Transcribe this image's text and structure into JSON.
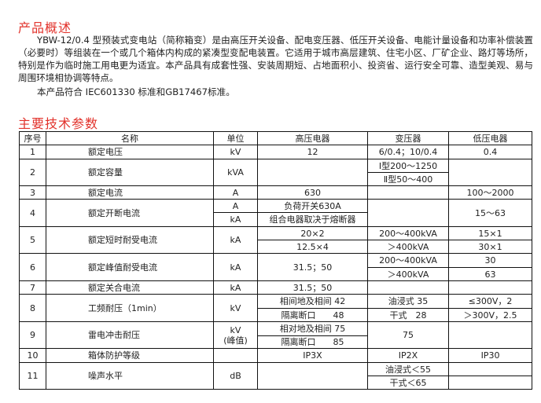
{
  "overview": {
    "title": "产品概述",
    "paragraph1": "YBW-12/0.4 型预装式变电站（简称箱变）是由高压开关设备、配电变压器、低压开关设备、电能计量设备和功率补偿装置（必要时）等组装在一个或几个箱体内构成的紧凑型变配电装置。它适用于城市高层建筑、住宅小区、厂矿企业、路灯等场所，特别是作为临时施工用电更为适宜。本产品具有成套性强、安装周期短、占地面积小、投资省、运行安全可靠、造型美观、易与周围环境相协调等特点。",
    "paragraph2": "本产品符合 IEC601330 标准和GB17467标准。"
  },
  "params": {
    "title": "主要技术参数",
    "headers": [
      "序号",
      "名称",
      "单位",
      "高压电器",
      "变压器",
      "低压电器"
    ],
    "rows": [
      {
        "no": "1",
        "name": "额定电压",
        "unit": "kV",
        "hv": "12",
        "tf": "6/0.4；10/0.4",
        "lv": "0.4"
      },
      {
        "no": "2",
        "name": "额定容量",
        "unit": "kVA",
        "hv": "",
        "tf": [
          "Ⅰ型200～1250",
          "Ⅱ型50～400"
        ],
        "lv": ""
      },
      {
        "no": "3",
        "name": "额定电流",
        "unit": "A",
        "hv": "630",
        "tf": "",
        "lv": "100～2000"
      },
      {
        "no": "4",
        "name": "额定开断电流",
        "unit": [
          "A",
          "kA"
        ],
        "hv": [
          "负荷开关630A",
          "组合电器取决于熔断器"
        ],
        "tf": "",
        "lv": "15～63"
      },
      {
        "no": "5",
        "name": "额定短时耐受电流",
        "unit": "kA",
        "hv": [
          "20×2",
          "12.5×4"
        ],
        "tf": [
          "200～400kVA",
          "＞400kVA"
        ],
        "lv": [
          "15×1",
          "30×1"
        ]
      },
      {
        "no": "6",
        "name": "额定峰值耐受电流",
        "unit": "kA",
        "hv": "31.5；50",
        "tf": [
          "200～400kVA",
          "＞400kVA"
        ],
        "lv": [
          "30",
          "63"
        ]
      },
      {
        "no": "7",
        "name": "额定关合电流",
        "unit": "kA",
        "hv": "31.5；50",
        "tf": "",
        "lv": ""
      },
      {
        "no": "8",
        "name": "工频耐压（1min）",
        "unit": "kV",
        "hv": [
          "相间地及相间 42",
          "隔离断口　　48"
        ],
        "tf": [
          "油浸式 35",
          "干式　28"
        ],
        "lv": [
          "≤300V，2",
          "＞300V，2.5"
        ]
      },
      {
        "no": "9",
        "name": "雷电冲击耐压",
        "unit": [
          "kV",
          "(峰值)"
        ],
        "hv": [
          "相对地及相间 75",
          "隔离断口　　85"
        ],
        "tf": "75",
        "lv": ""
      },
      {
        "no": "10",
        "name": "箱体防护等级",
        "unit": "",
        "hv": "IP3X",
        "tf": "IP2X",
        "lv": "IP30"
      },
      {
        "no": "11",
        "name": "噪声水平",
        "unit": "dB",
        "hv": "",
        "tf": [
          "油浸式＜55",
          "干式＜65"
        ],
        "lv": [
          "",
          ""
        ]
      }
    ]
  }
}
